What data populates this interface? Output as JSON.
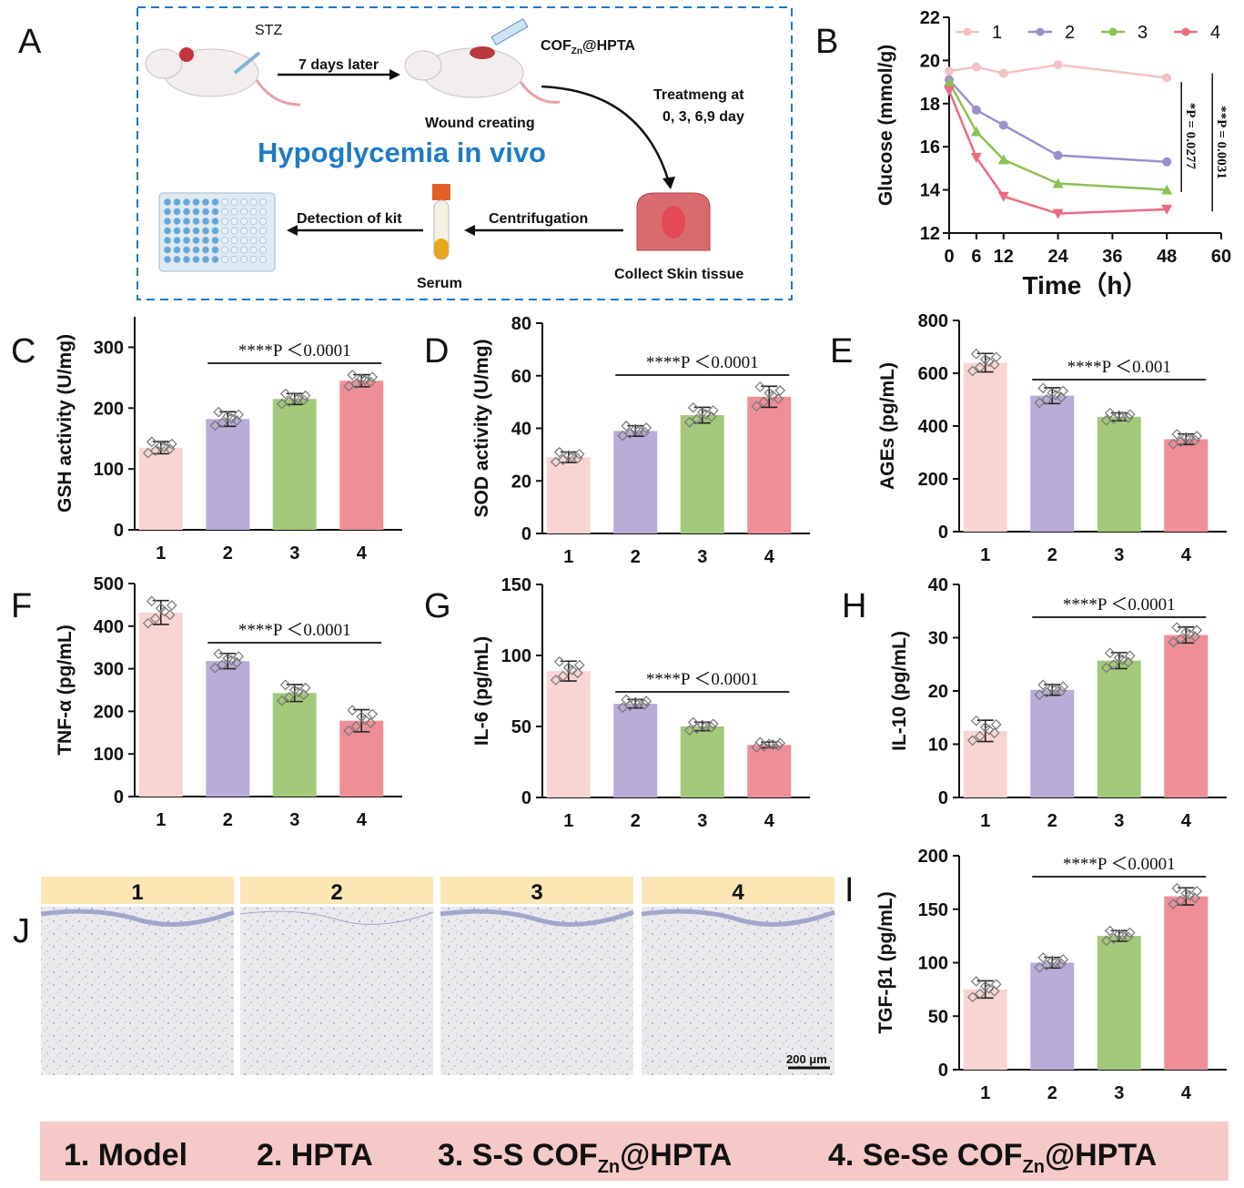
{
  "colors": {
    "g1": "#f8d5d3",
    "g2": "#b9acd8",
    "g3": "#a3c97a",
    "g4": "#ee8f98",
    "line1": "#f4c2c3",
    "line2": "#9c8fcf",
    "line3": "#8cc152",
    "line4": "#ec6b7f",
    "schematic_border": "#1f77c9",
    "footer_bg": "#f5c9c8"
  },
  "panel_letters": [
    "A",
    "B",
    "C",
    "D",
    "E",
    "F",
    "G",
    "H",
    "I",
    "J"
  ],
  "schematic": {
    "stz": "STZ",
    "arrow1": "7 days later",
    "cof": "COF",
    "cof_sub": "Zn",
    "cof_suffix": "@HPTA",
    "wound": "Wound creating",
    "title": "Hypoglycemia in vivo",
    "treat1": "Treatmeng at",
    "treat2": "0, 3, 6,9 day",
    "collect": "Collect Skin tissue",
    "centrifugation": "Centrifugation",
    "serum": "Serum",
    "detection": "Detection of kit"
  },
  "histology": {
    "labels": [
      "1",
      "2",
      "3",
      "4"
    ],
    "scale_bar": "200 μm"
  },
  "footer": {
    "item1": "1. Model",
    "item2": "2. HPTA",
    "item3_pre": "3. S-S COF",
    "item3_sub": "Zn",
    "item3_post": "@HPTA",
    "item4_pre": "4. Se-Se COF",
    "item4_sub": "Zn",
    "item4_post": "@HPTA"
  },
  "chart_data": [
    {
      "panel": "B",
      "type": "line",
      "xlabel": "Time（h）",
      "ylabel": "Glucose (mmol/g)",
      "xlim": [
        0,
        60
      ],
      "ylim": [
        12,
        22
      ],
      "xticks": [
        0,
        6,
        12,
        24,
        36,
        48,
        60
      ],
      "yticks": [
        12,
        14,
        16,
        18,
        20,
        22
      ],
      "legend": "top",
      "series": [
        {
          "name": "1",
          "x": [
            0,
            6,
            12,
            24,
            48
          ],
          "y": [
            19.5,
            19.7,
            19.4,
            19.8,
            19.2
          ]
        },
        {
          "name": "2",
          "x": [
            0,
            6,
            12,
            24,
            48
          ],
          "y": [
            19.1,
            17.7,
            17.0,
            15.6,
            15.3
          ]
        },
        {
          "name": "3",
          "x": [
            0,
            6,
            12,
            24,
            48
          ],
          "y": [
            19.0,
            16.7,
            15.4,
            14.3,
            14.0
          ]
        },
        {
          "name": "4",
          "x": [
            0,
            6,
            12,
            24,
            48
          ],
          "y": [
            18.6,
            15.5,
            13.7,
            12.9,
            13.1
          ]
        }
      ],
      "annotations": [
        "*P = 0.0277",
        "**P = 0.0031"
      ]
    },
    {
      "panel": "C",
      "type": "bar",
      "ylabel": "GSH activity (U/mg)",
      "categories": [
        "1",
        "2",
        "3",
        "4"
      ],
      "values": [
        135,
        182,
        215,
        245
      ],
      "errors": [
        10,
        12,
        9,
        10
      ],
      "ylim": [
        0,
        350
      ],
      "yticks": [
        0,
        100,
        200,
        300
      ],
      "annotation": "****P ＜0.0001"
    },
    {
      "panel": "D",
      "type": "bar",
      "ylabel": "SOD activity (U/mg)",
      "categories": [
        "1",
        "2",
        "3",
        "4"
      ],
      "values": [
        29,
        39,
        45,
        52
      ],
      "errors": [
        2,
        2,
        3,
        4
      ],
      "ylim": [
        0,
        80
      ],
      "yticks": [
        0,
        20,
        40,
        60,
        80
      ],
      "annotation": "****P ＜0.0001"
    },
    {
      "panel": "E",
      "type": "bar",
      "ylabel": "AGEs (pg/mL)",
      "categories": [
        "1",
        "2",
        "3",
        "4"
      ],
      "values": [
        640,
        515,
        435,
        350
      ],
      "errors": [
        35,
        30,
        15,
        20
      ],
      "ylim": [
        0,
        800
      ],
      "yticks": [
        0,
        200,
        400,
        600,
        800
      ],
      "annotation": "****P ＜0.001"
    },
    {
      "panel": "F",
      "type": "bar",
      "ylabel": "TNF-α (pg/mL)",
      "categories": [
        "1",
        "2",
        "3",
        "4"
      ],
      "values": [
        432,
        318,
        243,
        178
      ],
      "errors": [
        28,
        18,
        20,
        26
      ],
      "ylim": [
        0,
        500
      ],
      "yticks": [
        0,
        100,
        200,
        300,
        400,
        500
      ],
      "annotation": "****P ＜0.0001"
    },
    {
      "panel": "G",
      "type": "bar",
      "ylabel": "IL-6 (pg/mL)",
      "categories": [
        "1",
        "2",
        "3",
        "4"
      ],
      "values": [
        89,
        66,
        50,
        37
      ],
      "errors": [
        7,
        3,
        3,
        2
      ],
      "ylim": [
        0,
        150
      ],
      "yticks": [
        0,
        50,
        100,
        150
      ],
      "annotation": "****P ＜0.0001"
    },
    {
      "panel": "H",
      "type": "bar",
      "ylabel": "IL-10 (pg/mL)",
      "categories": [
        "1",
        "2",
        "3",
        "4"
      ],
      "values": [
        12.5,
        20.2,
        25.7,
        30.5
      ],
      "errors": [
        2,
        1,
        1.5,
        1.5
      ],
      "ylim": [
        0,
        40
      ],
      "yticks": [
        0,
        10,
        20,
        30,
        40
      ],
      "annotation": "****P ＜0.0001"
    },
    {
      "panel": "I",
      "type": "bar",
      "ylabel": "TGF-β1 (pg/mL)",
      "categories": [
        "1",
        "2",
        "3",
        "4"
      ],
      "values": [
        75,
        100,
        125,
        162
      ],
      "errors": [
        8,
        5,
        5,
        8
      ],
      "ylim": [
        0,
        200
      ],
      "yticks": [
        0,
        50,
        100,
        150,
        200
      ],
      "annotation": "****P ＜0.0001"
    }
  ]
}
